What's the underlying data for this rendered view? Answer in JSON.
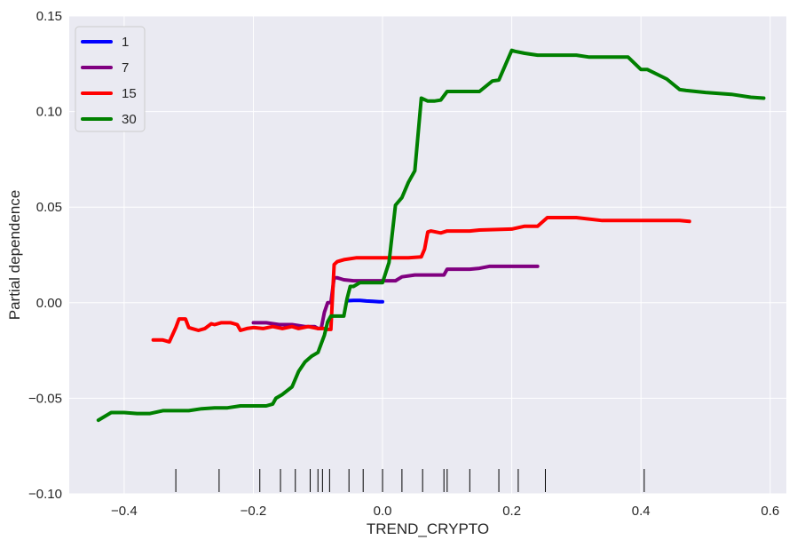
{
  "chart_data": {
    "type": "line",
    "xlabel": "TREND_CRYPTO",
    "ylabel": "Partial dependence",
    "xlim": [
      -0.485,
      0.625
    ],
    "ylim": [
      -0.1,
      0.15
    ],
    "xticks": [
      -0.4,
      -0.2,
      0.0,
      0.2,
      0.4,
      0.6
    ],
    "xtick_labels": [
      "−0.4",
      "−0.2",
      "0.0",
      "0.2",
      "0.4",
      "0.6"
    ],
    "yticks": [
      -0.1,
      -0.05,
      0.0,
      0.05,
      0.1,
      0.15
    ],
    "ytick_labels": [
      "−0.10",
      "−0.05",
      "0.00",
      "0.05",
      "0.10",
      "0.15"
    ],
    "grid": true,
    "legend_position": "top-left",
    "background": "#eaeaf2",
    "rug_x": [
      -0.32,
      -0.253,
      -0.19,
      -0.158,
      -0.135,
      -0.112,
      -0.1,
      -0.093,
      -0.082,
      -0.052,
      -0.03,
      0.0,
      0.03,
      0.062,
      0.095,
      0.1,
      0.135,
      0.18,
      0.21,
      0.252,
      0.405
    ],
    "series": [
      {
        "name": "1",
        "color": "#0000ff",
        "x": [
          -0.055,
          -0.045,
          -0.035,
          -0.025,
          -0.015,
          -0.005,
          0.0
        ],
        "y": [
          0.001,
          0.0012,
          0.0012,
          0.0009,
          0.0007,
          0.0005,
          0.0005
        ]
      },
      {
        "name": "7",
        "color": "#800080",
        "x": [
          -0.2,
          -0.18,
          -0.16,
          -0.14,
          -0.12,
          -0.105,
          -0.1,
          -0.095,
          -0.09,
          -0.085,
          -0.08,
          -0.075,
          -0.07,
          -0.06,
          -0.045,
          -0.02,
          0.0,
          0.02,
          0.03,
          0.05,
          0.06,
          0.095,
          0.1,
          0.12,
          0.135,
          0.15,
          0.165,
          0.18,
          0.2,
          0.22,
          0.24
        ],
        "y": [
          -0.0105,
          -0.0105,
          -0.0115,
          -0.0115,
          -0.0125,
          -0.0125,
          -0.0135,
          -0.0135,
          -0.005,
          0.0,
          0.0,
          0.013,
          0.013,
          0.012,
          0.0115,
          0.0115,
          0.0115,
          0.0115,
          0.0135,
          0.0145,
          0.0145,
          0.0145,
          0.0175,
          0.0175,
          0.0175,
          0.018,
          0.019,
          0.019,
          0.019,
          0.019,
          0.019
        ]
      },
      {
        "name": "15",
        "color": "#ff0000",
        "x": [
          -0.355,
          -0.34,
          -0.33,
          -0.32,
          -0.315,
          -0.31,
          -0.305,
          -0.3,
          -0.295,
          -0.285,
          -0.275,
          -0.265,
          -0.26,
          -0.25,
          -0.235,
          -0.225,
          -0.22,
          -0.21,
          -0.2,
          -0.185,
          -0.17,
          -0.155,
          -0.14,
          -0.13,
          -0.115,
          -0.1,
          -0.09,
          -0.085,
          -0.08,
          -0.075,
          -0.07,
          -0.06,
          -0.04,
          -0.02,
          0.0,
          0.02,
          0.04,
          0.06,
          0.065,
          0.07,
          0.075,
          0.09,
          0.1,
          0.12,
          0.135,
          0.15,
          0.2,
          0.22,
          0.24,
          0.255,
          0.3,
          0.34,
          0.38,
          0.42,
          0.46,
          0.475
        ],
        "y": [
          -0.0195,
          -0.0195,
          -0.0205,
          -0.013,
          -0.0085,
          -0.0085,
          -0.0085,
          -0.013,
          -0.0135,
          -0.0145,
          -0.0135,
          -0.011,
          -0.0115,
          -0.0105,
          -0.0105,
          -0.0115,
          -0.0145,
          -0.0135,
          -0.013,
          -0.0135,
          -0.0125,
          -0.0135,
          -0.0125,
          -0.0135,
          -0.0125,
          -0.0135,
          -0.0135,
          -0.014,
          -0.014,
          0.02,
          0.0215,
          0.0225,
          0.0235,
          0.0235,
          0.0235,
          0.0235,
          0.0235,
          0.024,
          0.028,
          0.037,
          0.0375,
          0.0365,
          0.0375,
          0.0375,
          0.0375,
          0.038,
          0.0385,
          0.04,
          0.04,
          0.0445,
          0.0445,
          0.043,
          0.043,
          0.043,
          0.043,
          0.0425
        ]
      },
      {
        "name": "30",
        "color": "#008000",
        "x": [
          -0.44,
          -0.42,
          -0.4,
          -0.38,
          -0.36,
          -0.34,
          -0.32,
          -0.3,
          -0.28,
          -0.26,
          -0.24,
          -0.22,
          -0.2,
          -0.18,
          -0.17,
          -0.165,
          -0.155,
          -0.14,
          -0.13,
          -0.12,
          -0.11,
          -0.1,
          -0.09,
          -0.085,
          -0.08,
          -0.075,
          -0.07,
          -0.06,
          -0.055,
          -0.05,
          -0.045,
          -0.04,
          -0.035,
          -0.03,
          -0.02,
          0.0,
          0.01,
          0.02,
          0.03,
          0.04,
          0.05,
          0.06,
          0.07,
          0.08,
          0.09,
          0.1,
          0.12,
          0.13,
          0.15,
          0.17,
          0.18,
          0.2,
          0.205,
          0.22,
          0.24,
          0.26,
          0.3,
          0.32,
          0.34,
          0.36,
          0.38,
          0.4,
          0.41,
          0.44,
          0.46,
          0.47,
          0.5,
          0.54,
          0.57,
          0.59
        ],
        "y": [
          -0.0615,
          -0.0575,
          -0.0575,
          -0.058,
          -0.058,
          -0.0565,
          -0.0565,
          -0.0565,
          -0.0555,
          -0.055,
          -0.055,
          -0.054,
          -0.054,
          -0.054,
          -0.053,
          -0.05,
          -0.048,
          -0.044,
          -0.036,
          -0.031,
          -0.028,
          -0.026,
          -0.017,
          -0.01,
          -0.007,
          -0.007,
          -0.007,
          -0.007,
          0.002,
          0.0085,
          0.0085,
          0.0095,
          0.0105,
          0.0105,
          0.0105,
          0.0105,
          0.021,
          0.051,
          0.055,
          0.063,
          0.069,
          0.107,
          0.1055,
          0.1055,
          0.106,
          0.1105,
          0.1105,
          0.1105,
          0.1105,
          0.116,
          0.1165,
          0.132,
          0.1315,
          0.1305,
          0.1295,
          0.1295,
          0.1295,
          0.1285,
          0.1285,
          0.1285,
          0.1285,
          0.122,
          0.122,
          0.117,
          0.1115,
          0.111,
          0.11,
          0.109,
          0.1075,
          0.107
        ]
      }
    ]
  }
}
